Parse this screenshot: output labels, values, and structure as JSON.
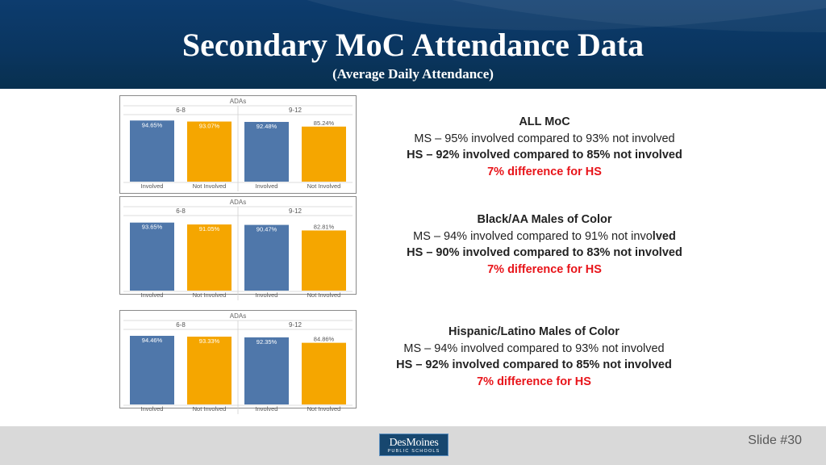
{
  "slide": {
    "title": "Secondary MoC Attendance Data",
    "subtitle": "(Average Daily Attendance)",
    "slide_number": "Slide #30",
    "logo_main": "DesMoines",
    "logo_sub": "PUBLIC SCHOOLS"
  },
  "colors": {
    "involved": "#4f77aa",
    "not_involved": "#f5a600",
    "header_bg": "#0b3864",
    "difference": "#e8141a"
  },
  "chart_data": [
    {
      "type": "bar",
      "title": "ADAs",
      "groups": [
        "6-8",
        "9-12"
      ],
      "categories": [
        "Involved",
        "Not Involved"
      ],
      "series": [
        {
          "group": "6-8",
          "values": [
            94.65,
            93.07
          ],
          "labels": [
            "94.65%",
            "93.07%"
          ]
        },
        {
          "group": "9-12",
          "values": [
            92.48,
            85.24
          ],
          "labels": [
            "92.48%",
            "85.24%"
          ]
        }
      ],
      "ylim": [
        0,
        100
      ]
    },
    {
      "type": "bar",
      "title": "ADAs",
      "groups": [
        "6-8",
        "9-12"
      ],
      "categories": [
        "Involved",
        "Not Involved"
      ],
      "series": [
        {
          "group": "6-8",
          "values": [
            93.65,
            91.05
          ],
          "labels": [
            "93.65%",
            "91.05%"
          ]
        },
        {
          "group": "9-12",
          "values": [
            90.47,
            82.81
          ],
          "labels": [
            "90.47%",
            "82.81%"
          ]
        }
      ],
      "ylim": [
        0,
        100
      ]
    },
    {
      "type": "bar",
      "title": "ADAs",
      "groups": [
        "6-8",
        "9-12"
      ],
      "categories": [
        "Involved",
        "Not Involved"
      ],
      "series": [
        {
          "group": "6-8",
          "values": [
            94.46,
            93.33
          ],
          "labels": [
            "94.46%",
            "93.33%"
          ]
        },
        {
          "group": "9-12",
          "values": [
            92.35,
            84.86
          ],
          "labels": [
            "92.35%",
            "84.86%"
          ]
        }
      ],
      "ylim": [
        0,
        100
      ]
    }
  ],
  "summaries": [
    {
      "heading": "ALL MoC",
      "ms": "MS – 95% involved compared to 93% not involved",
      "hs": "HS – 92% involved compared to 85% not involved",
      "difference": "7% difference for HS"
    },
    {
      "heading": "Black/AA Males of Color",
      "ms_pre": "MS – 94% involved compared to 91% not invo",
      "ms_bold": "lved",
      "hs": "HS – 90% involved compared to 83% not involved",
      "difference": "7% difference for HS"
    },
    {
      "heading": "Hispanic/Latino Males of Color",
      "ms": "MS – 94% involved compared to 93% not involved",
      "hs": "HS – 92% involved compared to 85% not involved",
      "difference": "7% difference for HS"
    }
  ]
}
